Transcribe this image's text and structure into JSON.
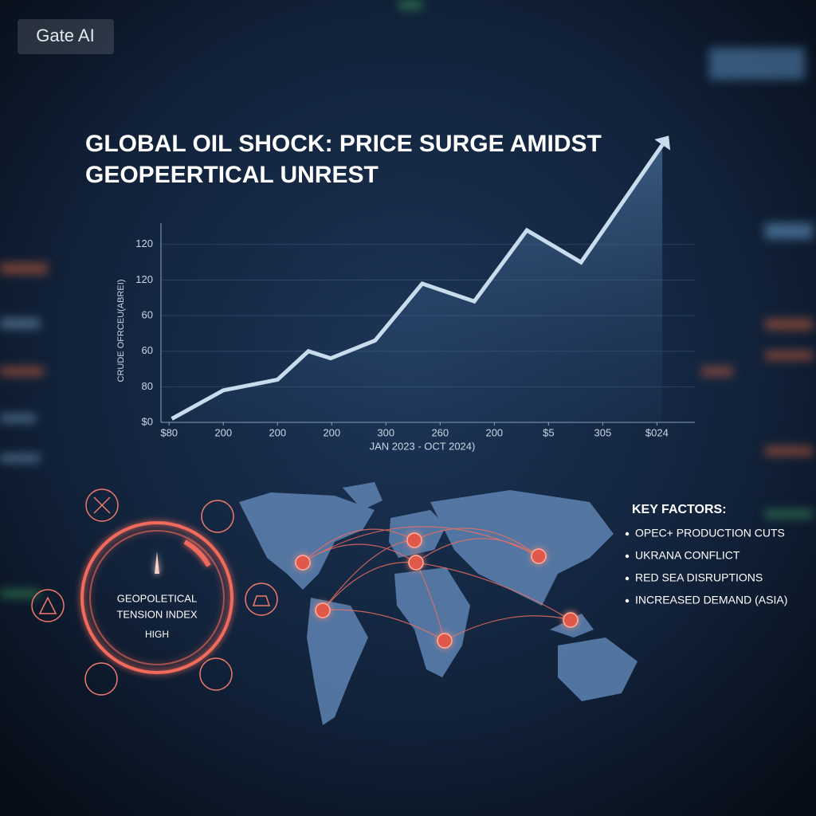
{
  "watermark": "Gate AI",
  "chart_data": {
    "type": "line",
    "title": "GLOBAL OIL SHOCK: PRICE SURGE AMIDST",
    "subtitle": "GEOPEERTICAL UNREST",
    "y_label": "CRUDE OFRCEU(ABREI)",
    "x_label": "JAN 2023 - OCT 2024)",
    "x": [
      0.05,
      1,
      2,
      2.57,
      2.98,
      3.8,
      4.67,
      5.63,
      6.6,
      7.6,
      9.1
    ],
    "values": [
      0.1,
      0.9,
      1.2,
      2.0,
      1.8,
      2.3,
      3.9,
      3.4,
      5.4,
      4.5,
      7.8
    ],
    "color": "#c9dcee",
    "xlim": [
      -0.15,
      9.7
    ],
    "ylim": [
      0,
      5.6
    ],
    "xticks": [
      {
        "value": 0,
        "label": "$80"
      },
      {
        "value": 1,
        "label": "200"
      },
      {
        "value": 2,
        "label": "200"
      },
      {
        "value": 3,
        "label": "200"
      },
      {
        "value": 4,
        "label": "300"
      },
      {
        "value": 5,
        "label": "260"
      },
      {
        "value": 6,
        "label": "200"
      },
      {
        "value": 7,
        "label": "$5"
      },
      {
        "value": 8,
        "label": "305"
      },
      {
        "value": 9,
        "label": "$024"
      }
    ],
    "yticks": [
      {
        "value": 0,
        "label": "$0"
      },
      {
        "value": 1,
        "label": "80"
      },
      {
        "value": 2,
        "label": "60"
      },
      {
        "value": 3,
        "label": "60"
      },
      {
        "value": 4,
        "label": "120"
      },
      {
        "value": 5,
        "label": "120"
      }
    ],
    "grid": true
  },
  "gauge": {
    "title_line1": "GEOPOLETICAL",
    "title_line2": "TENSION INDEX",
    "level": "HIGH"
  },
  "key_factors": {
    "title": "KEY FACTORS:",
    "items": [
      "OPEC+ PRODUCTION CUTS",
      "UKRANA CONFLICT",
      "RED SEA DISRUPTIONS",
      "INCREASED DEMAND (ASIA)"
    ]
  }
}
